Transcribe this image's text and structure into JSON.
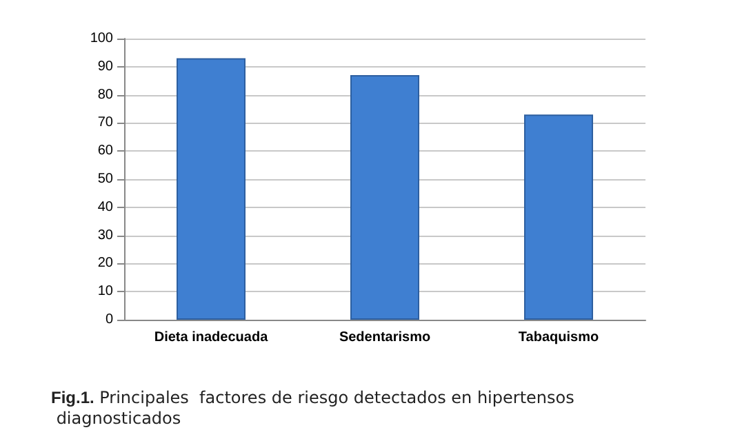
{
  "chart_data": {
    "type": "bar",
    "categories": [
      "Dieta inadecuada",
      "Sedentarismo",
      "Tabaquismo"
    ],
    "values": [
      93,
      87,
      73
    ],
    "color": "#3f7fd1",
    "ylim": [
      0,
      100
    ],
    "yticks": [
      0,
      10,
      20,
      30,
      40,
      50,
      60,
      70,
      80,
      90,
      100
    ],
    "grid": "y",
    "annotations": [
      "Fig.1. Principales  factores de riesgo detectados en hipertensos diagnosticados"
    ]
  }
}
